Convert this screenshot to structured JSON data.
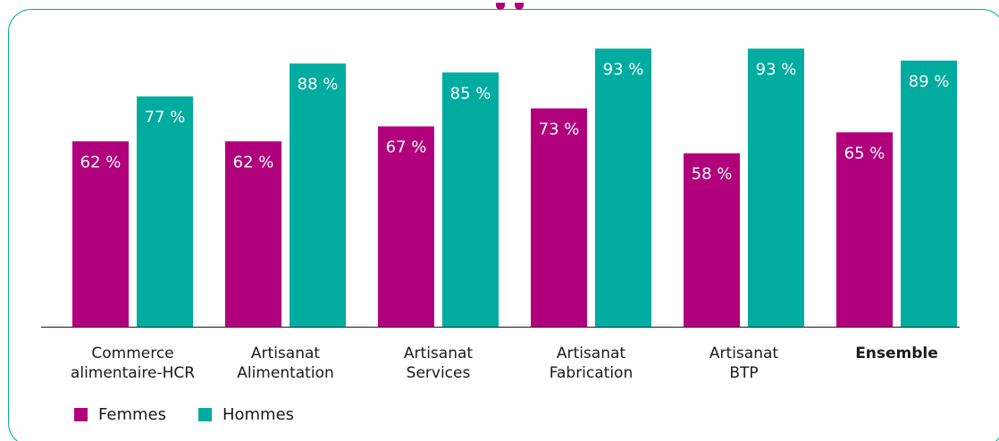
{
  "chart_data": {
    "type": "bar",
    "categories": [
      [
        "Commerce",
        "alimentaire-HCR"
      ],
      [
        "Artisanat",
        "Alimentation"
      ],
      [
        "Artisanat",
        "Services"
      ],
      [
        "Artisanat",
        "Fabrication"
      ],
      [
        "Artisanat",
        "BTP"
      ],
      [
        "Ensemble"
      ]
    ],
    "emphasized_category": "Ensemble",
    "series": [
      {
        "name": "Femmes",
        "color": "#b0007c",
        "values": [
          62,
          62,
          67,
          73,
          58,
          65
        ]
      },
      {
        "name": "Hommes",
        "color": "#00aba0",
        "values": [
          77,
          88,
          85,
          93,
          93,
          89
        ]
      }
    ],
    "value_suffix": " %",
    "ylim": [
      0,
      100
    ],
    "grid": false,
    "legend_position": "bottom-left"
  },
  "colors": {
    "frame": "#00a99d",
    "title_accent": "#b0007c",
    "baseline": "#333333"
  }
}
